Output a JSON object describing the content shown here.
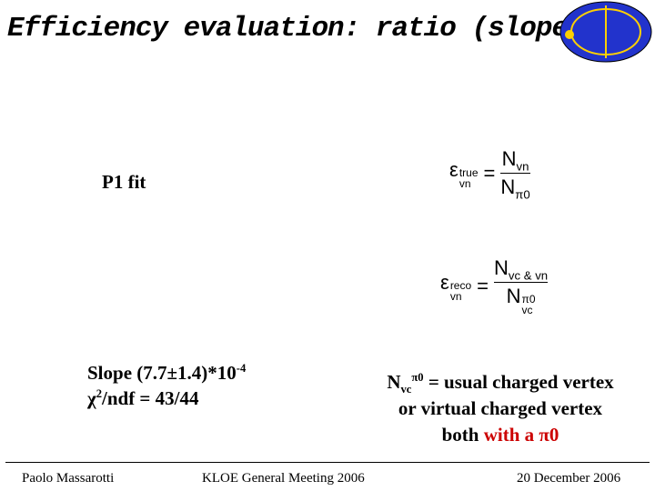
{
  "header": {
    "title": "Efficiency evaluation: ratio (slope)"
  },
  "body": {
    "fit_label": "P1 fit",
    "formulas": [
      {
        "symbol": "ε",
        "sup": "true",
        "sub": "vn",
        "equals": "=",
        "numerator": {
          "base": "N",
          "sub": "vn"
        },
        "denominator": {
          "base": "N",
          "sub": "π0"
        }
      },
      {
        "symbol": "ε",
        "sup": "reco",
        "sub": "vn",
        "equals": "=",
        "numerator": {
          "base": "N",
          "sub": "vc & vn"
        },
        "denominator": {
          "base": "N",
          "sup": "π0",
          "sub": "vc"
        }
      }
    ],
    "slope": {
      "text": "Slope (7.7±1.4)*10",
      "exponent": "-4"
    },
    "chi2": {
      "symbol": "χ",
      "exponent": "2",
      "text": "/ndf = 43/44"
    },
    "note": {
      "symbol": "N",
      "sub": "vc",
      "sup": "π0",
      "line1": " = usual charged vertex",
      "line2": "or virtual charged vertex",
      "line3_start": "both ",
      "line3_highlight": "with a π0"
    }
  },
  "footer": {
    "author": "Paolo Massarotti",
    "event": "KLOE General Meeting 2006",
    "date": "20 December 2006"
  }
}
